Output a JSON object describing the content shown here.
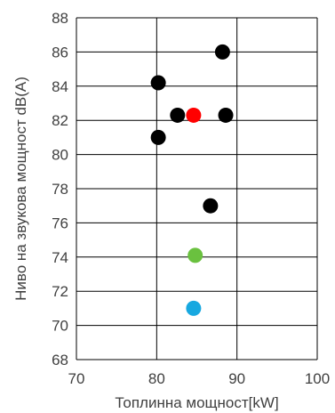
{
  "chart_data": {
    "type": "scatter",
    "title": "",
    "xlabel": "Топлинна мощност[kW]",
    "ylabel": "Ниво на звукова мощност dB(A)",
    "xlim": [
      70,
      100
    ],
    "ylim": [
      68,
      88
    ],
    "x_ticks": [
      70,
      80,
      90,
      100
    ],
    "y_ticks": [
      68,
      70,
      72,
      74,
      76,
      78,
      80,
      82,
      84,
      86,
      88
    ],
    "grid": true,
    "legend": "none",
    "colors": {
      "grid": "#000000",
      "tick_text": "#404040",
      "default_point": "#000000"
    },
    "series": [
      {
        "color": "#000000",
        "points": [
          {
            "x": 88.2,
            "y": 86.0
          },
          {
            "x": 80.2,
            "y": 84.2
          },
          {
            "x": 82.6,
            "y": 82.3
          },
          {
            "x": 88.6,
            "y": 82.3
          },
          {
            "x": 80.2,
            "y": 81.0
          },
          {
            "x": 86.7,
            "y": 77.0
          }
        ]
      },
      {
        "color": "#ff0000",
        "points": [
          {
            "x": 84.6,
            "y": 82.3
          }
        ]
      },
      {
        "color": "#6ac13f",
        "points": [
          {
            "x": 84.8,
            "y": 74.1
          }
        ]
      },
      {
        "color": "#17a8e0",
        "points": [
          {
            "x": 84.6,
            "y": 71.0
          }
        ]
      }
    ]
  }
}
